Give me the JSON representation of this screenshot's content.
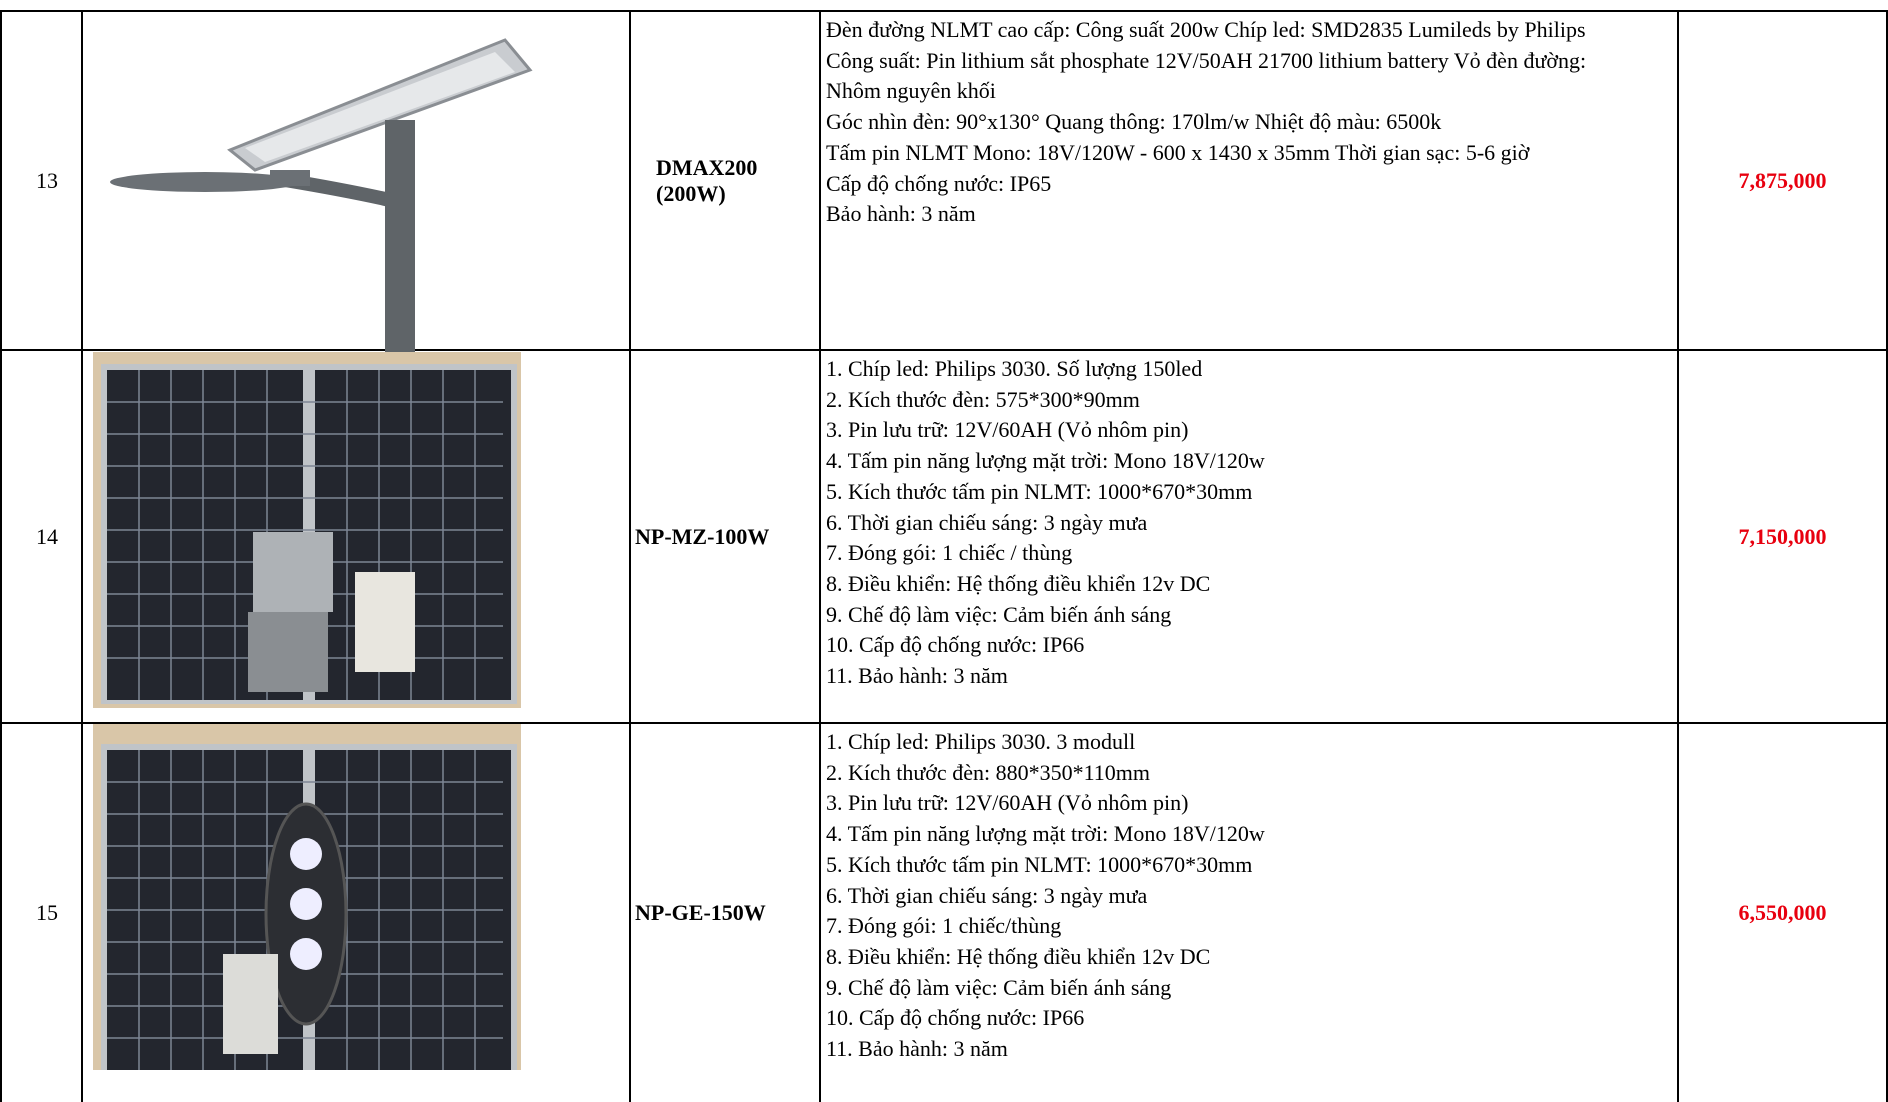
{
  "table": {
    "rows": [
      {
        "no": "13",
        "model": [
          "DMAX200",
          "(200W)"
        ],
        "description": [
          "Đèn đường NLMT cao cấp: Công suất 200w Chíp led: SMD2835 Lumileds by Philips",
          "Công suất: Pin lithium sắt phosphate 12V/50AH 21700 lithium battery Vỏ đèn đường:",
          "Nhôm nguyên khối",
          "Góc nhìn đèn: 90°x130° Quang thông: 170lm/w Nhiệt độ màu: 6500k",
          "Tấm pin NLMT Mono: 18V/120W -  600 x 1430 x 35mm Thời gian sạc: 5-6 giờ",
          "Cấp độ chống nước: IP65",
          "Bảo hành: 3 năm"
        ],
        "price": "7,875,000"
      },
      {
        "no": "14",
        "model": [
          "NP-MZ-100W"
        ],
        "description": [
          "1. Chíp led: Philips 3030. Số lượng 150led",
          "2. Kích thước đèn: 575*300*90mm",
          "3. Pin lưu trữ: 12V/60AH (Vỏ nhôm pin)",
          "4. Tấm pin năng lượng mặt trời: Mono 18V/120w",
          "5. Kích thước tấm pin NLMT: 1000*670*30mm",
          "6. Thời gian chiếu sáng: 3 ngày mưa",
          "7. Đóng gói: 1 chiếc / thùng",
          "8. Điều khiển: Hệ thống điều khiển 12v DC",
          "9. Chế độ làm việc: Cảm biến ánh sáng",
          "10. Cấp độ chống nước: IP66",
          "11. Bảo hành: 3 năm"
        ],
        "price": "7,150,000"
      },
      {
        "no": "15",
        "model": [
          "NP-GE-150W"
        ],
        "description": [
          "1. Chíp led: Philips 3030. 3 modull",
          "2. Kích thước đèn: 880*350*110mm",
          "3. Pin lưu trữ: 12V/60AH (Vỏ nhôm pin)",
          "4. Tấm pin năng lượng mặt trời: Mono 18V/120w",
          "5. Kích thước tấm pin NLMT: 1000*670*30mm",
          "6. Thời gian chiếu sáng: 3 ngày mưa",
          "7. Đóng gói: 1 chiếc/thùng",
          "8. Điều khiển: Hệ thống điều khiển 12v DC",
          "9. Chế độ làm việc: Cảm biến ánh sáng",
          "10. Cấp độ chống nước: IP66",
          "11. Bảo hành: 3 năm"
        ],
        "price": "6,550,000"
      }
    ]
  }
}
